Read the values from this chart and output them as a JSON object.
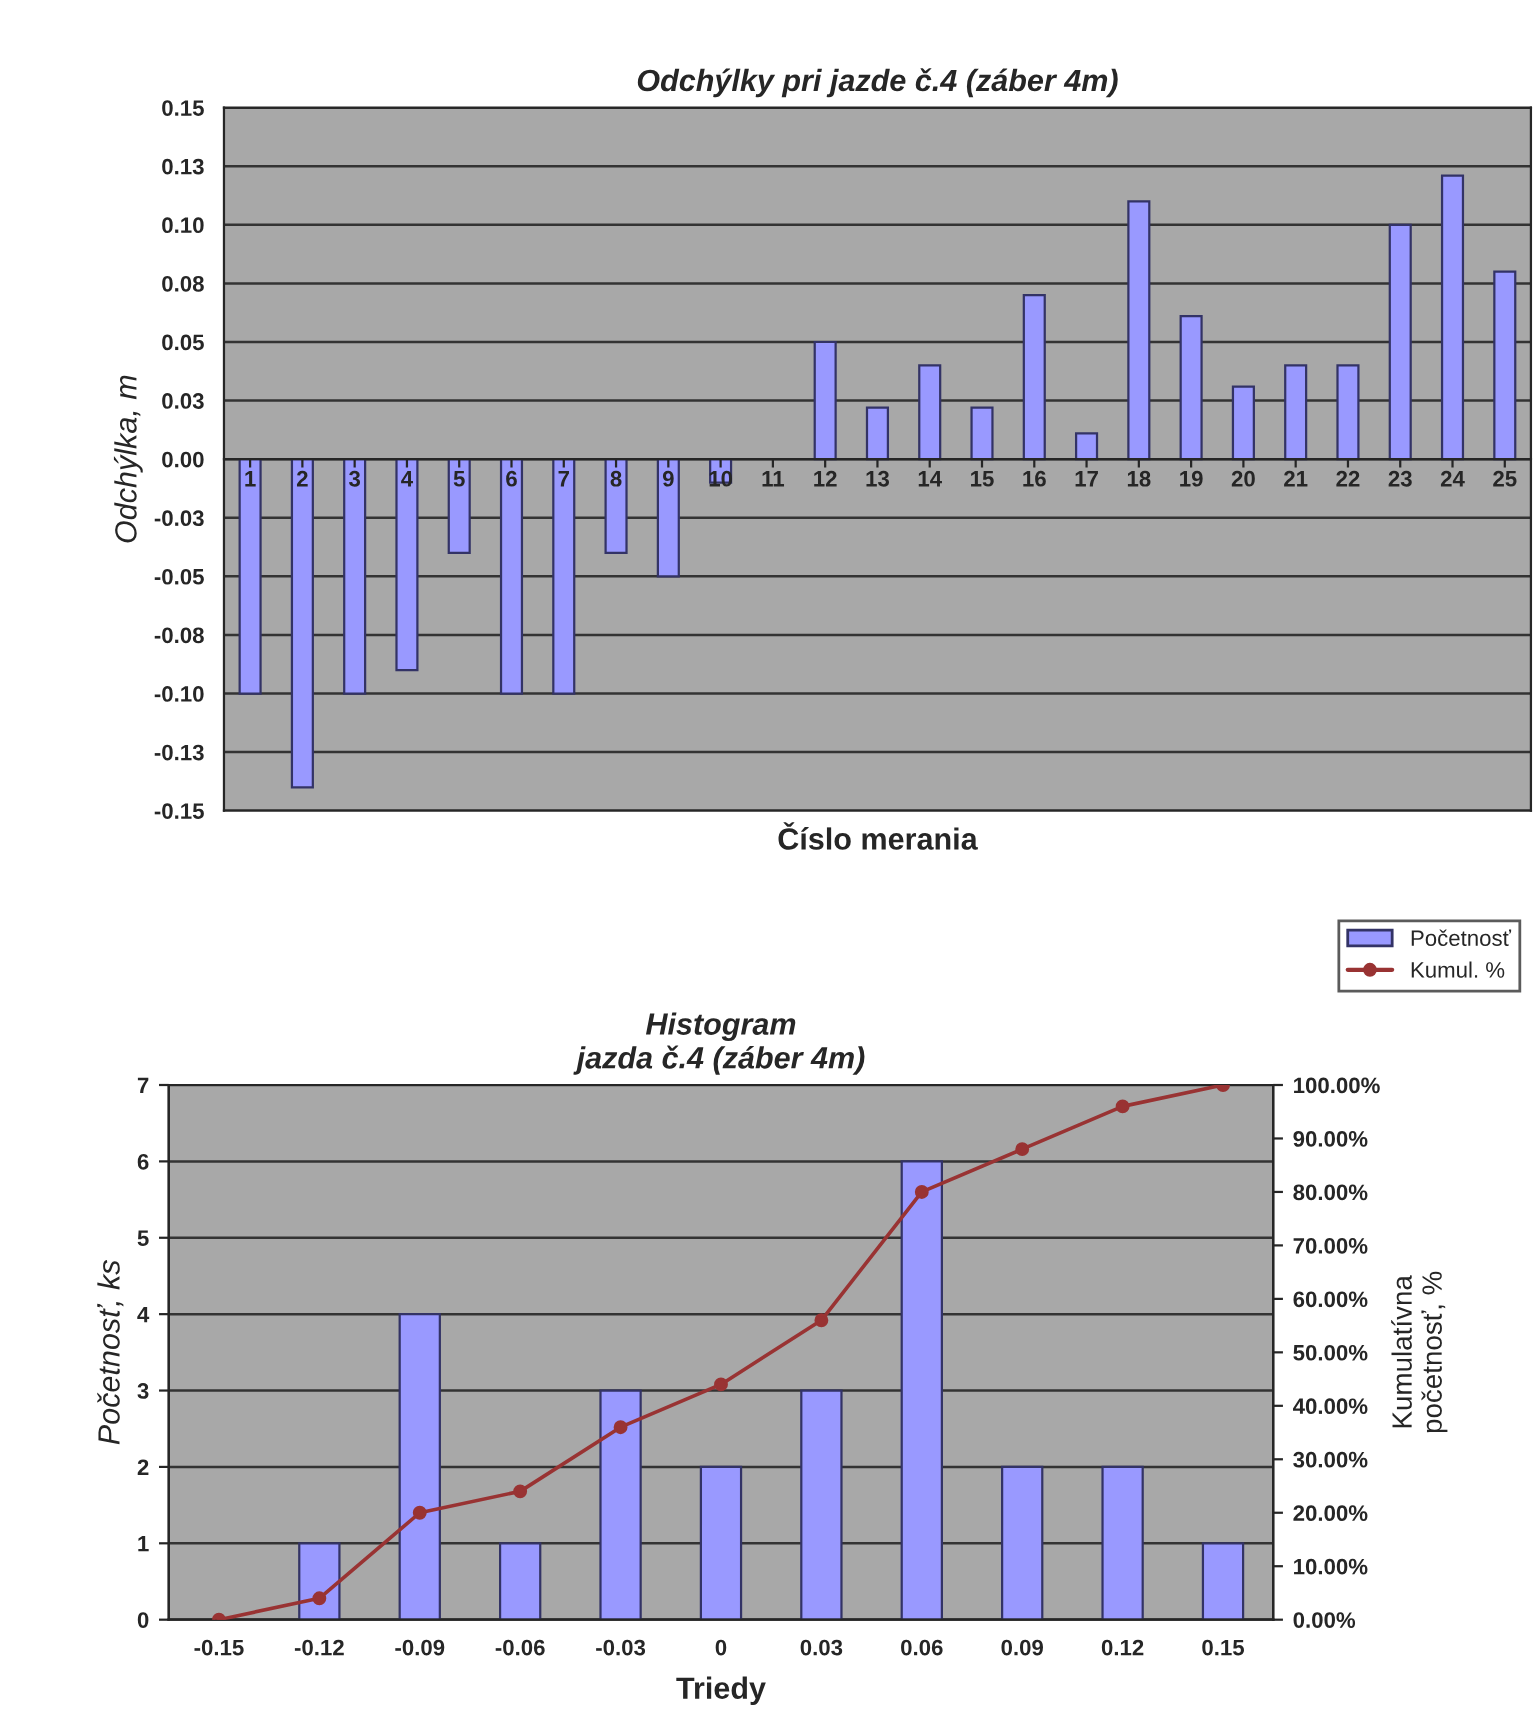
{
  "chart_data": [
    {
      "type": "bar",
      "title": "Odchýlky pri jazde č.4 (záber 4m)",
      "xlabel": "Číslo merania",
      "ylabel": "Odchýlka, m",
      "categories": [
        "1",
        "2",
        "3",
        "4",
        "5",
        "6",
        "7",
        "8",
        "9",
        "10",
        "11",
        "12",
        "13",
        "14",
        "15",
        "16",
        "17",
        "18",
        "19",
        "20",
        "21",
        "22",
        "23",
        "24",
        "25"
      ],
      "series": [
        {
          "color": "#9999ff",
          "values": [
            -0.1,
            -0.14,
            -0.1,
            -0.09,
            -0.04,
            -0.1,
            -0.1,
            -0.04,
            -0.05,
            -0.01,
            0,
            0.05,
            0.022,
            0.04,
            0.022,
            0.07,
            0.011,
            0.11,
            0.061,
            0.031,
            0.04,
            0.04,
            0.1,
            0.121,
            0.08
          ]
        }
      ],
      "ylim": [
        -0.15,
        0.15
      ],
      "yticks": [
        {
          "value": -0.15,
          "label": "-0.15"
        },
        {
          "value": -0.125,
          "label": "-0.13"
        },
        {
          "value": -0.1,
          "label": "-0.10"
        },
        {
          "value": -0.075,
          "label": "-0.08"
        },
        {
          "value": -0.05,
          "label": "-0.05"
        },
        {
          "value": -0.025,
          "label": "-0.03"
        },
        {
          "value": 0,
          "label": "0.00"
        },
        {
          "value": 0.025,
          "label": "0.03"
        },
        {
          "value": 0.05,
          "label": "0.05"
        },
        {
          "value": 0.075,
          "label": "0.08"
        },
        {
          "value": 0.1,
          "label": "0.10"
        },
        {
          "value": 0.125,
          "label": "0.13"
        },
        {
          "value": 0.15,
          "label": "0.15"
        }
      ],
      "grid": "y",
      "legend": false
    },
    {
      "type": "bar",
      "title": "Histogram\njazda č.4 (záber 4m)",
      "xlabel": "Triedy",
      "ylabel": "Početnosť, ks",
      "y2label": "Kumulatívna\npočetnosť, %",
      "categories": [
        "-0.15",
        "-0.12",
        "-0.09",
        "-0.06",
        "-0.03",
        "0",
        "0.03",
        "0.06",
        "0.09",
        "0.12",
        "0.15"
      ],
      "series": [
        {
          "name": "Početnosť",
          "type": "bar",
          "color": "#9999ff",
          "values": [
            0,
            1,
            4,
            1,
            3,
            2,
            3,
            6,
            2,
            2,
            1
          ]
        },
        {
          "name": "Kumul. %",
          "type": "line",
          "axis": "y2",
          "color": "#993333",
          "marker": "circle",
          "values": [
            0,
            4,
            20,
            24,
            36,
            44,
            56,
            80,
            88,
            96,
            100
          ]
        }
      ],
      "ylim": [
        0,
        7
      ],
      "yticks": [
        0,
        1,
        2,
        3,
        4,
        5,
        6,
        7
      ],
      "y2lim": [
        0,
        100
      ],
      "y2ticks": [
        {
          "value": 0,
          "label": "0.00%"
        },
        {
          "value": 10,
          "label": "10.00%"
        },
        {
          "value": 20,
          "label": "20.00%"
        },
        {
          "value": 30,
          "label": "30.00%"
        },
        {
          "value": 40,
          "label": "40.00%"
        },
        {
          "value": 50,
          "label": "50.00%"
        },
        {
          "value": 60,
          "label": "60.00%"
        },
        {
          "value": 70,
          "label": "70.00%"
        },
        {
          "value": 80,
          "label": "80.00%"
        },
        {
          "value": 90,
          "label": "90.00%"
        },
        {
          "value": 100,
          "label": "100.00%"
        }
      ],
      "grid": "y",
      "legend": "top right"
    }
  ]
}
